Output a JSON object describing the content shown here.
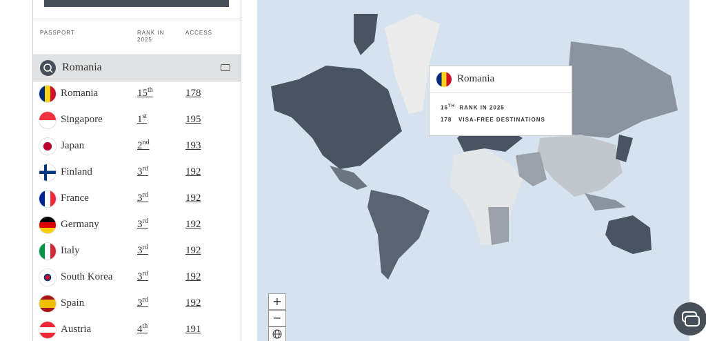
{
  "table": {
    "headers": [
      "PASSPORT",
      "RANK IN 2025",
      "ACCESS"
    ],
    "search": "Romania",
    "rows": [
      {
        "name": "Romania",
        "rank": "15",
        "suffix": "th",
        "access": "178"
      },
      {
        "name": "Singapore",
        "rank": "1",
        "suffix": "st",
        "access": "195"
      },
      {
        "name": "Japan",
        "rank": "2",
        "suffix": "nd",
        "access": "193"
      },
      {
        "name": "Finland",
        "rank": "3",
        "suffix": "rd",
        "access": "192"
      },
      {
        "name": "France",
        "rank": "3",
        "suffix": "rd",
        "access": "192"
      },
      {
        "name": "Germany",
        "rank": "3",
        "suffix": "rd",
        "access": "192"
      },
      {
        "name": "Italy",
        "rank": "3",
        "suffix": "rd",
        "access": "192"
      },
      {
        "name": "South Korea",
        "rank": "3",
        "suffix": "rd",
        "access": "192"
      },
      {
        "name": "Spain",
        "rank": "3",
        "suffix": "rd",
        "access": "192"
      },
      {
        "name": "Austria",
        "rank": "4",
        "suffix": "th",
        "access": "191"
      }
    ]
  },
  "tooltip": {
    "country": "Romania",
    "rank": "15",
    "suffix": "TH",
    "rank_text": "RANK IN 2025",
    "access": "178",
    "access_text": "VISA-FREE DESTINATIONS"
  },
  "zoom": [
    "+",
    "−"
  ]
}
